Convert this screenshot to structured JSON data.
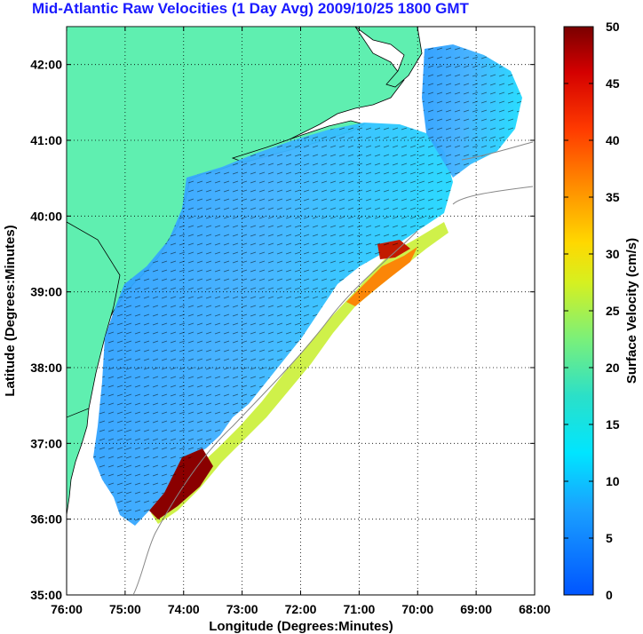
{
  "title": "Mid-Atlantic Raw Velocities (1 Day Avg) 2009/10/25 1800 GMT",
  "colors": {
    "land": "#5fefb0",
    "title_text": "#1a1aff",
    "coast_line": "#000000",
    "bathymetry": "#888888"
  },
  "map": {
    "xlabel": "Longitude (Degrees:Minutes)",
    "ylabel": "Latitude (Degrees:Minutes)",
    "x_ticks": [
      "76:00",
      "75:00",
      "74:00",
      "73:00",
      "72:00",
      "71:00",
      "70:00",
      "69:00",
      "68:00"
    ],
    "y_ticks": [
      "42:00",
      "41:00",
      "40:00",
      "39:00",
      "38:00",
      "37:00",
      "36:00",
      "35:00"
    ],
    "lon_range": [
      -76,
      -68
    ],
    "lat_range": [
      35,
      42.5
    ],
    "grid": "dotted"
  },
  "colorbar": {
    "label": "Surface Velocity (cm/s)",
    "ticks": [
      "50",
      "45",
      "40",
      "35",
      "30",
      "25",
      "20",
      "15",
      "10",
      "5",
      "0"
    ],
    "range": [
      0,
      50
    ],
    "colormap": "jet"
  }
}
